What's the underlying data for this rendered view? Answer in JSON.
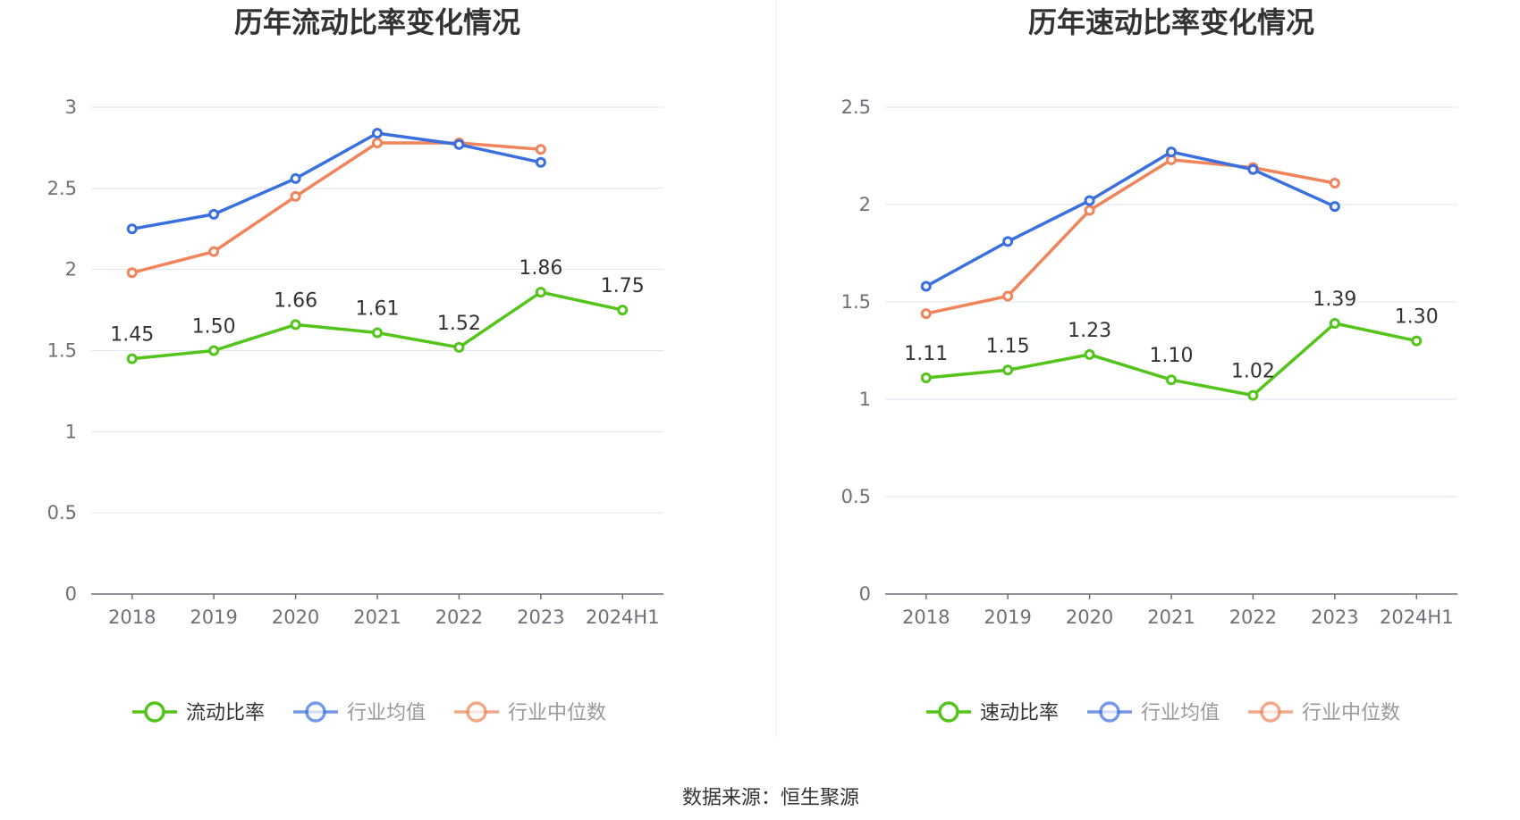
{
  "source": "数据来源：恒生聚源",
  "colors": {
    "primary": "#52c41a",
    "average": "#3a6fe0",
    "median": "#f0845a",
    "grid": "#dfe4f0",
    "axis": "#6e7079",
    "legend_inactive_text": "#999999",
    "divider": "#eeeeee"
  },
  "chart_data": [
    {
      "type": "line",
      "title": "历年流动比率变化情况",
      "categories": [
        "2018",
        "2019",
        "2020",
        "2021",
        "2022",
        "2023",
        "2024H1"
      ],
      "ylim": [
        0,
        3
      ],
      "yticks": [
        "0",
        "0.5",
        "1",
        "1.5",
        "2",
        "2.5",
        "3"
      ],
      "grid": true,
      "legend_position": "bottom",
      "series": [
        {
          "name": "流动比率",
          "role": "primary",
          "values": [
            1.45,
            1.5,
            1.66,
            1.61,
            1.52,
            1.86,
            1.75
          ],
          "labels": [
            "1.45",
            "1.50",
            "1.66",
            "1.61",
            "1.52",
            "1.86",
            "1.75"
          ]
        },
        {
          "name": "行业均值",
          "role": "average",
          "values": [
            2.25,
            2.34,
            2.56,
            2.84,
            2.77,
            2.66,
            null
          ]
        },
        {
          "name": "行业中位数",
          "role": "median",
          "values": [
            1.98,
            2.11,
            2.45,
            2.78,
            2.78,
            2.74,
            null
          ]
        }
      ]
    },
    {
      "type": "line",
      "title": "历年速动比率变化情况",
      "categories": [
        "2018",
        "2019",
        "2020",
        "2021",
        "2022",
        "2023",
        "2024H1"
      ],
      "ylim": [
        0,
        2.5
      ],
      "yticks": [
        "0",
        "0.5",
        "1",
        "1.5",
        "2",
        "2.5"
      ],
      "grid": true,
      "legend_position": "bottom",
      "series": [
        {
          "name": "速动比率",
          "role": "primary",
          "values": [
            1.11,
            1.15,
            1.23,
            1.1,
            1.02,
            1.39,
            1.3
          ],
          "labels": [
            "1.11",
            "1.15",
            "1.23",
            "1.10",
            "1.02",
            "1.39",
            "1.30"
          ]
        },
        {
          "name": "行业均值",
          "role": "average",
          "values": [
            1.58,
            1.81,
            2.02,
            2.27,
            2.18,
            1.99,
            null
          ]
        },
        {
          "name": "行业中位数",
          "role": "median",
          "values": [
            1.44,
            1.53,
            1.97,
            2.23,
            2.19,
            2.11,
            null
          ]
        }
      ]
    }
  ]
}
